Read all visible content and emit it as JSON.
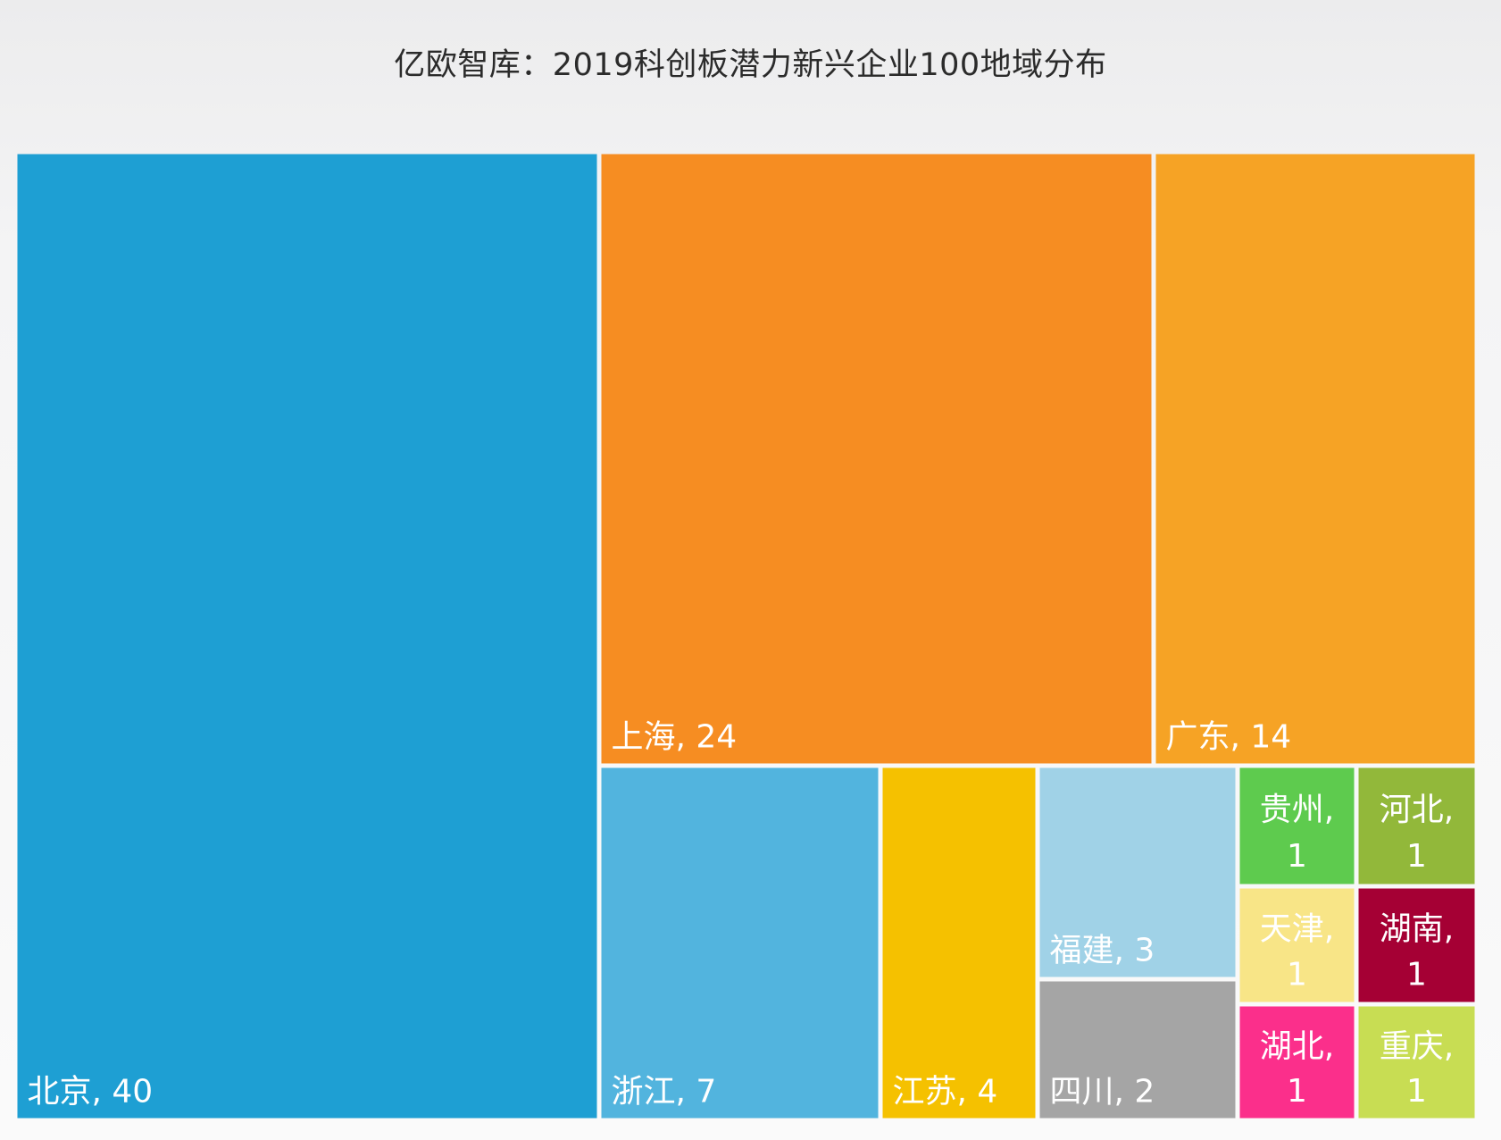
{
  "chart_data": {
    "type": "treemap",
    "title": "亿欧智库：2019科创板潜力新兴企业100地域分布",
    "items": [
      {
        "name": "北京",
        "value": 40,
        "color": "#1e9fd3",
        "label": "北京, 40"
      },
      {
        "name": "上海",
        "value": 24,
        "color": "#f68d22",
        "label": "上海, 24"
      },
      {
        "name": "广东",
        "value": 14,
        "color": "#f6a325",
        "label": "广东, 14"
      },
      {
        "name": "浙江",
        "value": 7,
        "color": "#52b4de",
        "label": "浙江, 7"
      },
      {
        "name": "江苏",
        "value": 4,
        "color": "#f5c100",
        "label": "江苏, 4"
      },
      {
        "name": "福建",
        "value": 3,
        "color": "#a0d2e7",
        "label": "福建, 3"
      },
      {
        "name": "四川",
        "value": 2,
        "color": "#a5a5a5",
        "label": "四川, 2"
      },
      {
        "name": "贵州",
        "value": 1,
        "color": "#5ecb4e",
        "label": "贵州, 1"
      },
      {
        "name": "河北",
        "value": 1,
        "color": "#92b83a",
        "label": "河北, 1"
      },
      {
        "name": "天津",
        "value": 1,
        "color": "#f8e587",
        "label": "天津, 1"
      },
      {
        "name": "湖南",
        "value": 1,
        "color": "#a50034",
        "label": "湖南, 1"
      },
      {
        "name": "湖北",
        "value": 1,
        "color": "#fb2f8b",
        "label": "湖北, 1"
      },
      {
        "name": "重庆",
        "value": 1,
        "color": "#c8dd53",
        "label": "重庆, 1"
      }
    ]
  }
}
